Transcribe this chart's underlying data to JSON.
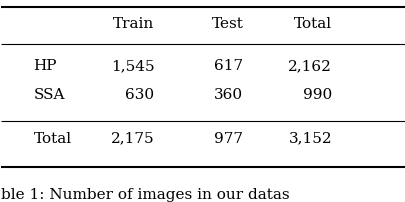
{
  "columns": [
    "",
    "Train",
    "Test",
    "Total"
  ],
  "rows": [
    [
      "HP",
      "1,545",
      "617",
      "2,162"
    ],
    [
      "SSA",
      "630",
      "360",
      "990"
    ],
    [
      "Total",
      "2,175",
      "977",
      "3,152"
    ]
  ],
  "caption": "ble 1: Number of images in our datas",
  "background_color": "#ffffff",
  "font_size": 11,
  "caption_font_size": 11
}
